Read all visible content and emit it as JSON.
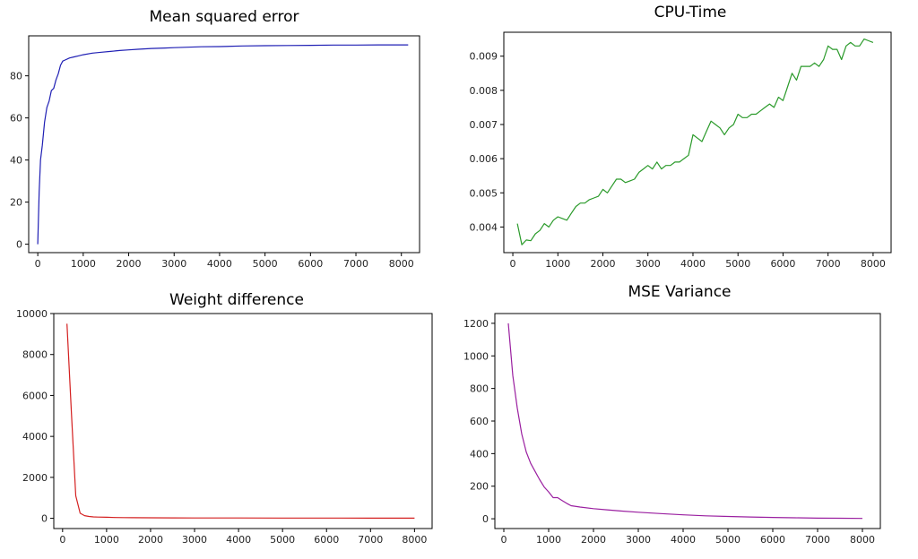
{
  "charts": [
    {
      "id": "mse",
      "title": "Mean squared error",
      "color": "#1f1fb4",
      "xlim": [
        -200,
        8400
      ],
      "ylim": [
        -4,
        99
      ],
      "xticks": [
        0,
        1000,
        2000,
        3000,
        4000,
        5000,
        6000,
        7000,
        8000
      ],
      "yticks": [
        0,
        20,
        40,
        60,
        80
      ],
      "ytick_labels": [
        "0",
        "20",
        "40",
        "60",
        "80"
      ]
    },
    {
      "id": "cpu",
      "title": "CPU-Time",
      "color": "#2a9a2a",
      "xlim": [
        -200,
        8400
      ],
      "ylim": [
        0.00325,
        0.0097
      ],
      "xticks": [
        0,
        1000,
        2000,
        3000,
        4000,
        5000,
        6000,
        7000,
        8000
      ],
      "yticks": [
        0.004,
        0.005,
        0.006,
        0.007,
        0.008,
        0.009
      ],
      "ytick_labels": [
        "0.004",
        "0.005",
        "0.006",
        "0.007",
        "0.008",
        "0.009"
      ]
    },
    {
      "id": "weight",
      "title": "Weight difference",
      "color": "#d42020",
      "xlim": [
        -200,
        8400
      ],
      "ylim": [
        -500,
        10000
      ],
      "xticks": [
        0,
        1000,
        2000,
        3000,
        4000,
        5000,
        6000,
        7000,
        8000
      ],
      "yticks": [
        0,
        2000,
        4000,
        6000,
        8000,
        10000
      ],
      "ytick_labels": [
        "0",
        "2000",
        "4000",
        "6000",
        "8000",
        "10000"
      ]
    },
    {
      "id": "variance",
      "title": "MSE Variance",
      "color": "#9a1fa0",
      "xlim": [
        -200,
        8400
      ],
      "ylim": [
        -60,
        1260
      ],
      "xticks": [
        0,
        1000,
        2000,
        3000,
        4000,
        5000,
        6000,
        7000,
        8000
      ],
      "yticks": [
        0,
        200,
        400,
        600,
        800,
        1000,
        1200
      ],
      "ytick_labels": [
        "0",
        "200",
        "400",
        "600",
        "800",
        "1000",
        "1200"
      ]
    }
  ],
  "chart_data": [
    {
      "type": "line",
      "title": "Mean squared error",
      "xlabel": "",
      "ylabel": "",
      "xlim": [
        -200,
        8400
      ],
      "ylim": [
        -4,
        99
      ],
      "grid": false,
      "series": [
        {
          "x": [
            0,
            30,
            60,
            100,
            150,
            200,
            250,
            300,
            350,
            400,
            450,
            500,
            550,
            600,
            700,
            800,
            900,
            1000,
            1200,
            1400,
            1600,
            1800,
            2000,
            2200,
            2500,
            2800,
            3000,
            3300,
            3600,
            4000,
            4500,
            5000,
            5500,
            6000,
            6500,
            7000,
            7500,
            8000,
            8150
          ],
          "y": [
            0,
            25,
            40,
            47,
            58,
            65,
            68,
            73,
            74,
            78,
            81,
            85,
            87,
            87.5,
            88.5,
            89,
            89.5,
            90,
            90.8,
            91.2,
            91.6,
            92,
            92.3,
            92.6,
            93,
            93.2,
            93.4,
            93.6,
            93.8,
            93.9,
            94.2,
            94.3,
            94.4,
            94.5,
            94.6,
            94.6,
            94.7,
            94.7,
            94.7
          ]
        }
      ]
    },
    {
      "type": "line",
      "title": "CPU-Time",
      "xlabel": "",
      "ylabel": "",
      "xlim": [
        -200,
        8400
      ],
      "ylim": [
        0.00325,
        0.0097
      ],
      "grid": false,
      "series": [
        {
          "x": [
            100,
            200,
            300,
            400,
            500,
            600,
            700,
            800,
            900,
            1000,
            1100,
            1200,
            1300,
            1400,
            1500,
            1600,
            1700,
            1800,
            1900,
            2000,
            2100,
            2200,
            2300,
            2400,
            2500,
            2600,
            2700,
            2800,
            2900,
            3000,
            3100,
            3200,
            3300,
            3400,
            3500,
            3600,
            3700,
            3800,
            3900,
            4000,
            4100,
            4200,
            4300,
            4400,
            4500,
            4600,
            4700,
            4800,
            4900,
            5000,
            5100,
            5200,
            5300,
            5400,
            5500,
            5600,
            5700,
            5800,
            5900,
            6000,
            6100,
            6200,
            6300,
            6400,
            6500,
            6600,
            6700,
            6800,
            6900,
            7000,
            7100,
            7200,
            7300,
            7400,
            7500,
            7600,
            7700,
            7800,
            7900,
            8000
          ],
          "y": [
            0.0041,
            0.00348,
            0.00362,
            0.0036,
            0.0038,
            0.0039,
            0.0041,
            0.004,
            0.0042,
            0.0043,
            0.00425,
            0.0042,
            0.0044,
            0.0046,
            0.0047,
            0.0047,
            0.0048,
            0.00485,
            0.0049,
            0.0051,
            0.005,
            0.0052,
            0.0054,
            0.0054,
            0.0053,
            0.00535,
            0.0054,
            0.0056,
            0.0057,
            0.0058,
            0.0057,
            0.0059,
            0.0057,
            0.0058,
            0.0058,
            0.0059,
            0.0059,
            0.006,
            0.0061,
            0.0067,
            0.0066,
            0.0065,
            0.0068,
            0.0071,
            0.007,
            0.0069,
            0.0067,
            0.0069,
            0.007,
            0.0073,
            0.0072,
            0.0072,
            0.0073,
            0.0073,
            0.0074,
            0.0075,
            0.0076,
            0.0075,
            0.0078,
            0.0077,
            0.0081,
            0.0085,
            0.0083,
            0.0087,
            0.0087,
            0.0087,
            0.0088,
            0.0087,
            0.0089,
            0.0093,
            0.0092,
            0.0092,
            0.0089,
            0.0093,
            0.0094,
            0.0093,
            0.0093,
            0.0095,
            0.00945,
            0.0094
          ]
        }
      ]
    },
    {
      "type": "line",
      "title": "Weight difference",
      "xlabel": "",
      "ylabel": "",
      "xlim": [
        -200,
        8400
      ],
      "ylim": [
        -500,
        10000
      ],
      "grid": false,
      "series": [
        {
          "x": [
            100,
            200,
            300,
            400,
            500,
            600,
            700,
            800,
            1000,
            1200,
            1400,
            1600,
            2000,
            2500,
            3000,
            4000,
            5000,
            6000,
            7000,
            8000
          ],
          "y": [
            9500,
            5200,
            1100,
            250,
            130,
            90,
            70,
            60,
            50,
            40,
            35,
            30,
            25,
            20,
            18,
            15,
            12,
            10,
            8,
            6
          ]
        }
      ]
    },
    {
      "type": "line",
      "title": "MSE Variance",
      "xlabel": "",
      "ylabel": "",
      "xlim": [
        -200,
        8400
      ],
      "ylim": [
        -60,
        1260
      ],
      "grid": false,
      "series": [
        {
          "x": [
            100,
            200,
            300,
            400,
            500,
            600,
            700,
            800,
            900,
            1000,
            1100,
            1200,
            1300,
            1400,
            1500,
            1700,
            2000,
            2300,
            2600,
            3000,
            3500,
            4000,
            4500,
            5000,
            5500,
            6000,
            6500,
            7000,
            7500,
            8000
          ],
          "y": [
            1200,
            880,
            680,
            520,
            410,
            340,
            290,
            240,
            195,
            165,
            130,
            130,
            112,
            95,
            80,
            72,
            62,
            55,
            48,
            40,
            32,
            24,
            18,
            14,
            11,
            8,
            6,
            4,
            3,
            2
          ]
        }
      ]
    }
  ]
}
